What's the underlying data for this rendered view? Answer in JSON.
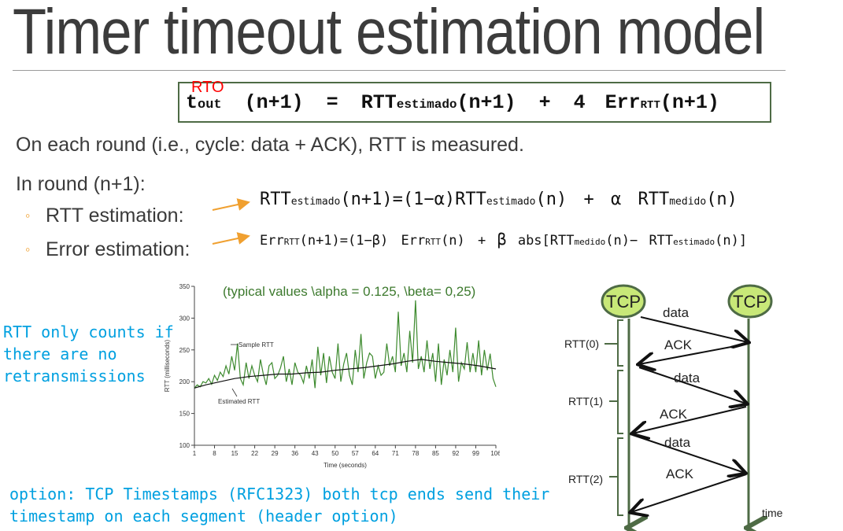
{
  "title": "Timer timeout estimation model",
  "timeout_formula": {
    "rto_label": "RTO",
    "t": "t",
    "t_sub": "out",
    "arg1": "(n+1)",
    "eq": "=",
    "rtt": "RTT",
    "rtt_sub": "estimado",
    "arg2": "(n+1)",
    "plus": "+",
    "factor": "4",
    "err": "Err",
    "err_sub": "RTT",
    "arg3": "(n+1)"
  },
  "text": {
    "line1": "On each round (i.e., cycle: data + ACK),  RTT is measured.",
    "line2": "In round (n+1):",
    "bullet1": "RTT estimation:",
    "bullet2": "Error estimation:",
    "bullet_marker": "◦"
  },
  "formula_rtt": {
    "lhs": "RTT",
    "lhs_sub": "estimado",
    "lhs_arg": "(n+1)",
    "eq": "=",
    "coef": "(1−α)",
    "t1": "RTT",
    "t1_sub": "estimado",
    "t1_arg": "(n)",
    "plus": "+",
    "alpha": "α",
    "t2": "RTT",
    "t2_sub": "medido",
    "t2_arg": "(n)"
  },
  "formula_err": {
    "lhs": "Err",
    "lhs_sub": "RTT",
    "lhs_arg": "(n+1)",
    "eq": "=",
    "coef": "(1−β)",
    "t1": "Err",
    "t1_sub": "RTT",
    "t1_arg": "(n)",
    "plus": "+",
    "beta": "β",
    "abs": "abs[RTT",
    "abs_sub": "medido",
    "abs_mid": "(n)−",
    "t3": "RTT",
    "t3_sub": "estimado",
    "t3_arg": "(n)]"
  },
  "side_note": [
    "RTT only counts if",
    "there are no",
    "retransmissions"
  ],
  "bottom_note": [
    "option: TCP Timestamps (RFC1323) both tcp ends send their",
    "timestamp on each segment (header option)"
  ],
  "chart_data": {
    "type": "line",
    "annotation": "(typical values  \\alpha = 0.125, \\beta= 0,25)",
    "xlabel": "Time (seconds)",
    "ylabel": "RTT (milliseconds)",
    "xlim": [
      1,
      106
    ],
    "ylim": [
      100,
      350
    ],
    "x_ticks": [
      "1",
      "8",
      "15",
      "22",
      "29",
      "36",
      "43",
      "50",
      "57",
      "64",
      "71",
      "78",
      "85",
      "92",
      "99",
      "106"
    ],
    "y_ticks": [
      "100",
      "150",
      "200",
      "250",
      "300",
      "350"
    ],
    "series": [
      {
        "name": "Sample RTT",
        "color": "#3d8a2e",
        "x": [
          1,
          2,
          3,
          4,
          5,
          6,
          7,
          8,
          9,
          10,
          11,
          12,
          13,
          14,
          15,
          16,
          17,
          18,
          19,
          20,
          21,
          22,
          23,
          24,
          25,
          26,
          27,
          28,
          29,
          30,
          31,
          32,
          33,
          34,
          35,
          36,
          37,
          38,
          39,
          40,
          41,
          42,
          43,
          44,
          45,
          46,
          47,
          48,
          49,
          50,
          51,
          52,
          53,
          54,
          55,
          56,
          57,
          58,
          59,
          60,
          61,
          62,
          63,
          64,
          65,
          66,
          67,
          68,
          69,
          70,
          71,
          72,
          73,
          74,
          75,
          76,
          77,
          78,
          79,
          80,
          81,
          82,
          83,
          84,
          85,
          86,
          87,
          88,
          89,
          90,
          91,
          92,
          93,
          94,
          95,
          96,
          97,
          98,
          99,
          100,
          101,
          102,
          103,
          104,
          105,
          106
        ],
        "values": [
          190,
          195,
          192,
          200,
          198,
          205,
          196,
          210,
          202,
          215,
          208,
          225,
          212,
          240,
          218,
          260,
          205,
          195,
          230,
          205,
          225,
          210,
          200,
          235,
          212,
          195,
          225,
          230,
          205,
          210,
          222,
          240,
          200,
          220,
          195,
          230,
          215,
          210,
          198,
          225,
          205,
          235,
          190,
          255,
          210,
          245,
          198,
          240,
          215,
          205,
          260,
          200,
          228,
          245,
          210,
          195,
          250,
          215,
          275,
          205,
          230,
          245,
          240,
          205,
          225,
          210,
          215,
          260,
          225,
          240,
          215,
          310,
          225,
          245,
          215,
          280,
          230,
          328,
          220,
          240,
          215,
          265,
          220,
          245,
          200,
          260,
          195,
          235,
          210,
          250,
          215,
          285,
          200,
          230,
          220,
          262,
          215,
          245,
          215,
          265,
          210,
          250,
          218,
          244,
          205,
          192
        ]
      },
      {
        "name": "Estimated RTT",
        "color": "#111111",
        "x": [
          1,
          5,
          10,
          15,
          20,
          25,
          30,
          35,
          40,
          45,
          50,
          55,
          60,
          65,
          70,
          75,
          80,
          85,
          90,
          95,
          100,
          106
        ],
        "values": [
          190,
          195,
          200,
          205,
          208,
          210,
          212,
          212,
          214,
          215,
          218,
          220,
          222,
          225,
          228,
          232,
          235,
          232,
          230,
          228,
          225,
          220
        ]
      }
    ]
  },
  "diagram": {
    "left_node": "TCP",
    "right_node": "TCP",
    "messages": [
      "data",
      "ACK",
      "data",
      "ACK",
      "data",
      "ACK"
    ],
    "rtt_labels": [
      "RTT(0)",
      "RTT(1)",
      "RTT(2)"
    ],
    "time_label": "time"
  },
  "colors": {
    "accent_green": "#3d8a2e",
    "arrow_orange": "#f0a030",
    "note_cyan": "#00a0e0",
    "rto_red": "#ff0000",
    "node_fill": "#c8e878"
  }
}
